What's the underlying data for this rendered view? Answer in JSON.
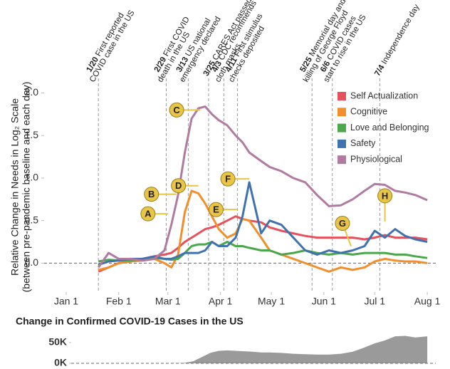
{
  "chart_data": [
    {
      "type": "line",
      "y_label": [
        "Relative Change in Needs in Log₂ Scale",
        "(between pre-pandemic baseline and each day)"
      ],
      "x": [
        19,
        25,
        31,
        38,
        45,
        52,
        58,
        62,
        66,
        70,
        74,
        78,
        82,
        86,
        90,
        95,
        100,
        104,
        108,
        115,
        120,
        127,
        134,
        141,
        148,
        155,
        162,
        169,
        176,
        182,
        188,
        194,
        200,
        206,
        213
      ],
      "xlim": [
        -13,
        218
      ],
      "xticks": [
        {
          "value": 0,
          "label": "Jan 1"
        },
        {
          "value": 31,
          "label": "Feb 1"
        },
        {
          "value": 60,
          "label": "Mar 1"
        },
        {
          "value": 91,
          "label": "Apr 1"
        },
        {
          "value": 121,
          "label": "May 1"
        },
        {
          "value": 152,
          "label": "Jun 1"
        },
        {
          "value": 182,
          "label": "Jul 1"
        },
        {
          "value": 213,
          "label": "Aug 1"
        }
      ],
      "ylim": [
        -0.34,
        2.13
      ],
      "yticks": [
        {
          "value": 0,
          "label": "0.0"
        },
        0.5,
        {
          "value": 1,
          "label": "1.0"
        },
        1.5,
        {
          "value": 2,
          "label": "2.0"
        }
      ],
      "zero_line": true,
      "legend": "top-right",
      "series": [
        {
          "name": "Self Actualization",
          "color": "#e8505b",
          "values": [
            -0.1,
            -0.05,
            0.0,
            0.02,
            0.05,
            0.08,
            0.1,
            0.12,
            0.18,
            0.25,
            0.3,
            0.35,
            0.4,
            0.42,
            0.45,
            0.5,
            0.55,
            0.52,
            0.5,
            0.48,
            0.42,
            0.38,
            0.35,
            0.32,
            0.3,
            0.3,
            0.3,
            0.3,
            0.28,
            0.3,
            0.33,
            0.3,
            0.3,
            0.3,
            0.28
          ]
        },
        {
          "name": "Cognitive",
          "color": "#f28e2b",
          "values": [
            -0.08,
            -0.05,
            0.0,
            0.02,
            0.03,
            0.05,
            0.0,
            -0.05,
            0.1,
            0.6,
            0.85,
            0.82,
            0.7,
            0.55,
            0.4,
            0.3,
            0.35,
            0.52,
            0.5,
            0.3,
            0.15,
            0.1,
            0.05,
            0.0,
            -0.05,
            -0.1,
            -0.05,
            -0.08,
            -0.05,
            0.02,
            0.05,
            0.03,
            0.02,
            0.02,
            0.0
          ]
        },
        {
          "name": "Love and Belonging",
          "color": "#4aa84a",
          "values": [
            0.02,
            0.04,
            0.03,
            0.03,
            0.05,
            0.06,
            0.05,
            0.04,
            0.05,
            0.12,
            0.2,
            0.22,
            0.22,
            0.25,
            0.2,
            0.25,
            0.2,
            0.2,
            0.18,
            0.15,
            0.15,
            0.1,
            0.12,
            0.15,
            0.12,
            0.1,
            0.12,
            0.1,
            0.12,
            0.12,
            0.12,
            0.1,
            0.1,
            0.08,
            0.06
          ]
        },
        {
          "name": "Safety",
          "color": "#3f72af",
          "values": [
            -0.02,
            0.02,
            0.03,
            0.05,
            0.05,
            0.08,
            0.05,
            0.05,
            0.08,
            0.12,
            0.12,
            0.12,
            0.15,
            0.25,
            0.2,
            0.2,
            0.3,
            0.55,
            0.95,
            0.35,
            0.5,
            0.45,
            0.3,
            0.15,
            0.1,
            0.15,
            0.12,
            0.15,
            0.2,
            0.38,
            0.3,
            0.4,
            0.32,
            0.28,
            0.25
          ]
        },
        {
          "name": "Physiological",
          "color": "#b07aa1",
          "values": [
            -0.05,
            0.12,
            0.05,
            0.05,
            0.03,
            0.05,
            0.15,
            0.45,
            0.8,
            1.3,
            1.7,
            1.82,
            1.84,
            1.75,
            1.68,
            1.62,
            1.5,
            1.42,
            1.3,
            1.2,
            1.13,
            1.08,
            1.0,
            0.95,
            0.8,
            0.67,
            0.68,
            0.75,
            0.85,
            0.93,
            0.92,
            0.85,
            0.83,
            0.8,
            0.74
          ]
        }
      ],
      "events": [
        {
          "x": 19,
          "date": "1/20",
          "text": [
            "First reported",
            "COVID case in the US"
          ]
        },
        {
          "x": 59,
          "date": "2/29",
          "text": [
            "First COVID",
            "death in the US"
          ]
        },
        {
          "x": 72,
          "date": "3/13",
          "text": [
            "US national",
            "emergency declared"
          ]
        },
        {
          "x": 84,
          "date": "3/25",
          "text": [
            "CARES Act passed"
          ]
        },
        {
          "x": 93,
          "date": "4/3",
          "text": [
            "CDC recommends",
            "cloth masks"
          ]
        },
        {
          "x": 101,
          "date": "4/11",
          "text": [
            "First stimulus",
            "checks deposited"
          ]
        },
        {
          "x": 145,
          "date": "5/25",
          "text": [
            "Memorial day and",
            "killing of George Floyd"
          ]
        },
        {
          "x": 157,
          "date": "6/6",
          "text": [
            "COVID cases",
            "start to rise in the US"
          ]
        },
        {
          "x": 185,
          "date": "7/4",
          "text": [
            "Independence day"
          ]
        }
      ],
      "annotations": [
        {
          "label": "A",
          "x": 60,
          "y": 0.58
        },
        {
          "label": "B",
          "x": 65,
          "y": 0.81
        },
        {
          "label": "C",
          "x": 79,
          "y": 1.8
        },
        {
          "label": "D",
          "x": 78,
          "y": 0.91
        },
        {
          "label": "E",
          "x": 101,
          "y": 0.63
        },
        {
          "label": "F",
          "x": 108,
          "y": 0.99
        },
        {
          "label": "G",
          "x": 168,
          "y": 0.2
        },
        {
          "label": "H",
          "x": 188,
          "y": 0.49
        }
      ]
    },
    {
      "type": "area",
      "title": "Change in Confirmed COVID-19 Cases in the US",
      "color": "#9a9a9a",
      "x": [
        19,
        40,
        55,
        62,
        66,
        70,
        75,
        80,
        85,
        90,
        95,
        100,
        105,
        110,
        115,
        120,
        127,
        134,
        141,
        148,
        155,
        162,
        169,
        176,
        182,
        188,
        194,
        200,
        206,
        213
      ],
      "values": [
        0,
        0,
        0,
        100,
        300,
        1000,
        5000,
        15000,
        25000,
        30000,
        31000,
        30000,
        29000,
        28000,
        26000,
        26000,
        25000,
        23000,
        22000,
        21000,
        21000,
        23000,
        28000,
        38000,
        48000,
        55000,
        65000,
        66000,
        62000,
        65000
      ],
      "xlim": [
        -13,
        218
      ],
      "ylim": [
        0,
        72000
      ],
      "yticks": [
        {
          "value": 0,
          "label": "0K"
        },
        {
          "value": 50000,
          "label": "50K"
        }
      ],
      "zero_line": true
    }
  ]
}
